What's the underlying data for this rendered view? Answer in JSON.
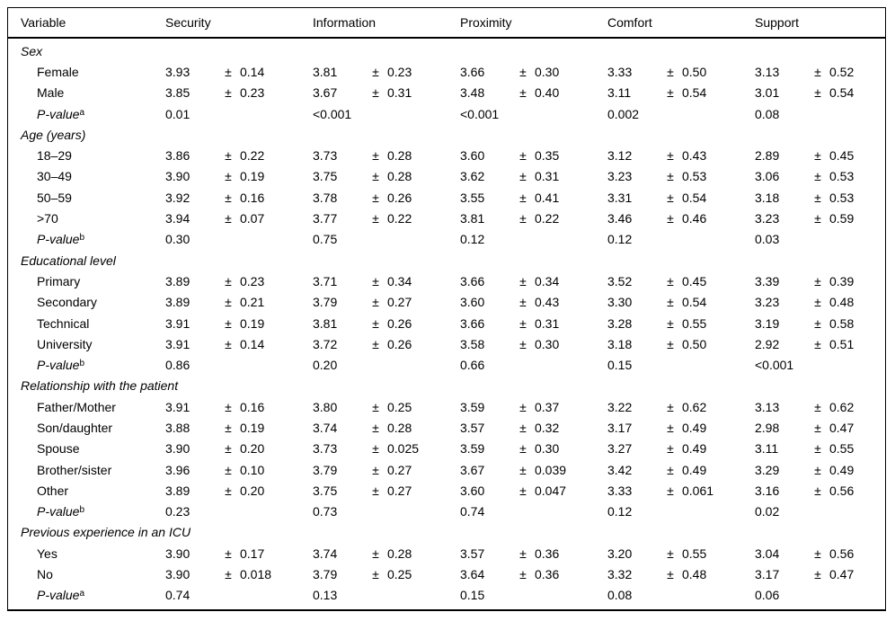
{
  "header": {
    "columns": [
      "Variable",
      "Security",
      "Information",
      "Proximity",
      "Comfort",
      "Support"
    ]
  },
  "pm_symbol": "±",
  "sections": [
    {
      "title": "Sex",
      "rows": [
        {
          "label": "Female",
          "values": [
            [
              "3.93",
              "0.14"
            ],
            [
              "3.81",
              "0.23"
            ],
            [
              "3.66",
              "0.30"
            ],
            [
              "3.33",
              "0.50"
            ],
            [
              "3.13",
              "0.52"
            ]
          ]
        },
        {
          "label": "Male",
          "values": [
            [
              "3.85",
              "0.23"
            ],
            [
              "3.67",
              "0.31"
            ],
            [
              "3.48",
              "0.40"
            ],
            [
              "3.11",
              "0.54"
            ],
            [
              "3.01",
              "0.54"
            ]
          ]
        }
      ],
      "pvalue": {
        "label": "P-value",
        "sup": "a",
        "values": [
          "0.01",
          "<0.001",
          "<0.001",
          "0.002",
          "0.08"
        ]
      }
    },
    {
      "title": "Age (years)",
      "rows": [
        {
          "label": "18–29",
          "values": [
            [
              "3.86",
              "0.22"
            ],
            [
              "3.73",
              "0.28"
            ],
            [
              "3.60",
              "0.35"
            ],
            [
              "3.12",
              "0.43"
            ],
            [
              "2.89",
              "0.45"
            ]
          ]
        },
        {
          "label": "30–49",
          "values": [
            [
              "3.90",
              "0.19"
            ],
            [
              "3.75",
              "0.28"
            ],
            [
              "3.62",
              "0.31"
            ],
            [
              "3.23",
              "0.53"
            ],
            [
              "3.06",
              "0.53"
            ]
          ]
        },
        {
          "label": "50–59",
          "values": [
            [
              "3.92",
              "0.16"
            ],
            [
              "3.78",
              "0.26"
            ],
            [
              "3.55",
              "0.41"
            ],
            [
              "3.31",
              "0.54"
            ],
            [
              "3.18",
              "0.53"
            ]
          ]
        },
        {
          "label": ">70",
          "values": [
            [
              "3.94",
              "0.07"
            ],
            [
              "3.77",
              "0.22"
            ],
            [
              "3.81",
              "0.22"
            ],
            [
              "3.46",
              "0.46"
            ],
            [
              "3.23",
              "0.59"
            ]
          ]
        }
      ],
      "pvalue": {
        "label": "P-value",
        "sup": "b",
        "values": [
          "0.30",
          "0.75",
          "0.12",
          "0.12",
          "0.03"
        ]
      }
    },
    {
      "title": "Educational level",
      "rows": [
        {
          "label": "Primary",
          "values": [
            [
              "3.89",
              "0.23"
            ],
            [
              "3.71",
              "0.34"
            ],
            [
              "3.66",
              "0.34"
            ],
            [
              "3.52",
              "0.45"
            ],
            [
              "3.39",
              "0.39"
            ]
          ]
        },
        {
          "label": "Secondary",
          "values": [
            [
              "3.89",
              "0.21"
            ],
            [
              "3.79",
              "0.27"
            ],
            [
              "3.60",
              "0.43"
            ],
            [
              "3.30",
              "0.54"
            ],
            [
              "3.23",
              "0.48"
            ]
          ]
        },
        {
          "label": "Technical",
          "values": [
            [
              "3.91",
              "0.19"
            ],
            [
              "3.81",
              "0.26"
            ],
            [
              "3.66",
              "0.31"
            ],
            [
              "3.28",
              "0.55"
            ],
            [
              "3.19",
              "0.58"
            ]
          ]
        },
        {
          "label": "University",
          "values": [
            [
              "3.91",
              "0.14"
            ],
            [
              "3.72",
              "0.26"
            ],
            [
              "3.58",
              "0.30"
            ],
            [
              "3.18",
              "0.50"
            ],
            [
              "2.92",
              "0.51"
            ]
          ]
        }
      ],
      "pvalue": {
        "label": "P-value",
        "sup": "b",
        "values": [
          "0.86",
          "0.20",
          "0.66",
          "0.15",
          "<0.001"
        ]
      }
    },
    {
      "title": "Relationship with the patient",
      "rows": [
        {
          "label": "Father/Mother",
          "values": [
            [
              "3.91",
              "0.16"
            ],
            [
              "3.80",
              "0.25"
            ],
            [
              "3.59",
              "0.37"
            ],
            [
              "3.22",
              "0.62"
            ],
            [
              "3.13",
              "0.62"
            ]
          ]
        },
        {
          "label": "Son/daughter",
          "values": [
            [
              "3.88",
              "0.19"
            ],
            [
              "3.74",
              "0.28"
            ],
            [
              "3.57",
              "0.32"
            ],
            [
              "3.17",
              "0.49"
            ],
            [
              "2.98",
              "0.47"
            ]
          ]
        },
        {
          "label": "Spouse",
          "values": [
            [
              "3.90",
              "0.20"
            ],
            [
              "3.73",
              "0.025"
            ],
            [
              "3.59",
              "0.30"
            ],
            [
              "3.27",
              "0.49"
            ],
            [
              "3.11",
              "0.55"
            ]
          ]
        },
        {
          "label": "Brother/sister",
          "values": [
            [
              "3.96",
              "0.10"
            ],
            [
              "3.79",
              "0.27"
            ],
            [
              "3.67",
              "0.039"
            ],
            [
              "3.42",
              "0.49"
            ],
            [
              "3.29",
              "0.49"
            ]
          ]
        },
        {
          "label": "Other",
          "values": [
            [
              "3.89",
              "0.20"
            ],
            [
              "3.75",
              "0.27"
            ],
            [
              "3.60",
              "0.047"
            ],
            [
              "3.33",
              "0.061"
            ],
            [
              "3.16",
              "0.56"
            ]
          ]
        }
      ],
      "pvalue": {
        "label": "P-value",
        "sup": "b",
        "values": [
          "0.23",
          "0.73",
          "0.74",
          "0.12",
          "0.02"
        ]
      }
    },
    {
      "title": "Previous experience in an ICU",
      "rows": [
        {
          "label": "Yes",
          "values": [
            [
              "3.90",
              "0.17"
            ],
            [
              "3.74",
              "0.28"
            ],
            [
              "3.57",
              "0.36"
            ],
            [
              "3.20",
              "0.55"
            ],
            [
              "3.04",
              "0.56"
            ]
          ]
        },
        {
          "label": "No",
          "values": [
            [
              "3.90",
              "0.018"
            ],
            [
              "3.79",
              "0.25"
            ],
            [
              "3.64",
              "0.36"
            ],
            [
              "3.32",
              "0.48"
            ],
            [
              "3.17",
              "0.47"
            ]
          ]
        }
      ],
      "pvalue": {
        "label": "P-value",
        "sup": "a",
        "values": [
          "0.74",
          "0.13",
          "0.15",
          "0.08",
          "0.06"
        ]
      }
    }
  ]
}
